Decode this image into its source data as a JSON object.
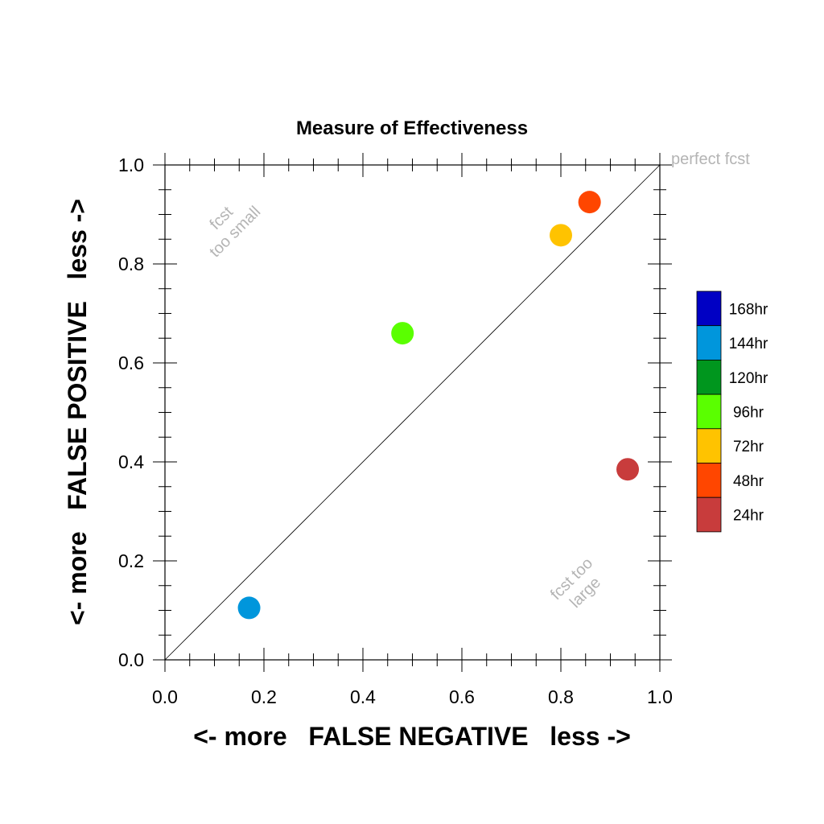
{
  "chart_data": {
    "type": "scatter",
    "title": "Measure of Effectiveness",
    "xlabel": "<- more   FALSE NEGATIVE   less ->",
    "ylabel": "<- more   FALSE POSITIVE   less ->",
    "xlim": [
      0.0,
      1.0
    ],
    "ylim": [
      0.0,
      1.0
    ],
    "x_ticks": [
      "0.0",
      "0.2",
      "0.4",
      "0.6",
      "0.8",
      "1.0"
    ],
    "y_ticks": [
      "0.0",
      "0.2",
      "0.4",
      "0.6",
      "0.8",
      "1.0"
    ],
    "grid": false,
    "diagonal_line": true,
    "annotations": {
      "perfect": "perfect fcst",
      "small_line1": "fcst",
      "small_line2": "too small",
      "large_line1": "fcst too",
      "large_line2": "large"
    },
    "legend_position": "right",
    "legend": [
      {
        "label": "168hr",
        "color": "#0000c4"
      },
      {
        "label": "144hr",
        "color": "#0096dc"
      },
      {
        "label": "120hr",
        "color": "#00961e"
      },
      {
        "label": "96hr",
        "color": "#5aff00"
      },
      {
        "label": "72hr",
        "color": "#ffc300"
      },
      {
        "label": "48hr",
        "color": "#ff4600"
      },
      {
        "label": "24hr",
        "color": "#c83c3c"
      }
    ],
    "points": [
      {
        "lead": "144hr",
        "x": 0.17,
        "y": 0.105,
        "color": "#0096dc"
      },
      {
        "lead": "96hr",
        "x": 0.48,
        "y": 0.66,
        "color": "#5aff00"
      },
      {
        "lead": "72hr",
        "x": 0.8,
        "y": 0.858,
        "color": "#ffc300"
      },
      {
        "lead": "48hr",
        "x": 0.858,
        "y": 0.925,
        "color": "#ff4600"
      },
      {
        "lead": "24hr",
        "x": 0.935,
        "y": 0.385,
        "color": "#c83c3c"
      }
    ]
  }
}
